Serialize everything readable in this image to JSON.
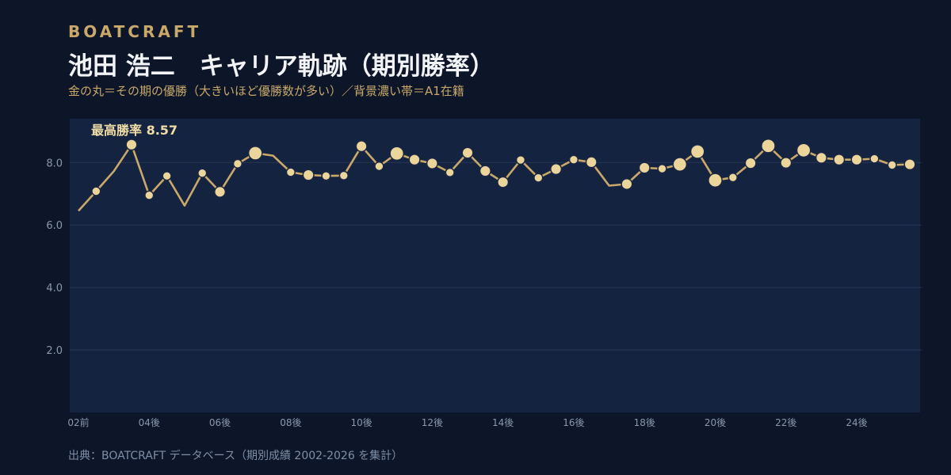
{
  "brand": "BOATCRAFT",
  "title": "池田 浩二　キャリア軌跡（期別勝率）",
  "subtitle": "金の丸＝その期の優勝（大きいほど優勝数が多い）／背景濃い帯＝A1在籍",
  "source": "出典：BOATCRAFT データベース（期別成績 2002-2026 を集計）",
  "colors": {
    "background": "#0c1628",
    "plot_band": "#14233f",
    "line": "#c9a86a",
    "marker": "#ecd59a",
    "grid": "#263756"
  },
  "chart_data": {
    "type": "line",
    "annotation": "最高勝率 8.57",
    "ylim": [
      0,
      9.4
    ],
    "yticks": [
      2.0,
      4.0,
      6.0,
      8.0
    ],
    "ytick_labels": [
      "2.0",
      "4.0",
      "6.0",
      "8.0"
    ],
    "xtick_labels": [
      {
        "index": 0,
        "label": "02前"
      },
      {
        "index": 4,
        "label": "04後"
      },
      {
        "index": 8,
        "label": "06後"
      },
      {
        "index": 12,
        "label": "08後"
      },
      {
        "index": 16,
        "label": "10後"
      },
      {
        "index": 20,
        "label": "12後"
      },
      {
        "index": 24,
        "label": "14後"
      },
      {
        "index": 28,
        "label": "16後"
      },
      {
        "index": 32,
        "label": "18後"
      },
      {
        "index": 36,
        "label": "20後"
      },
      {
        "index": 40,
        "label": "22後"
      },
      {
        "index": 44,
        "label": "24後"
      }
    ],
    "values": [
      6.45,
      7.08,
      7.72,
      8.57,
      6.95,
      7.57,
      6.62,
      7.66,
      7.06,
      7.96,
      8.3,
      8.22,
      7.69,
      7.6,
      7.57,
      7.58,
      8.52,
      7.88,
      8.29,
      8.09,
      7.97,
      7.68,
      8.31,
      7.73,
      7.37,
      8.08,
      7.51,
      7.79,
      8.09,
      8.01,
      7.26,
      7.31,
      7.83,
      7.8,
      7.94,
      8.35,
      7.43,
      7.52,
      7.98,
      8.53,
      7.99,
      8.39,
      8.15,
      8.09,
      8.09,
      8.12,
      7.92,
      7.94
    ],
    "wins": [
      0,
      1,
      0,
      2,
      1,
      1,
      0,
      1,
      2,
      1,
      3,
      0,
      1,
      2,
      1,
      1,
      2,
      1,
      3,
      2,
      2,
      1,
      2,
      2,
      2,
      1,
      1,
      2,
      1,
      2,
      0,
      2,
      2,
      1,
      3,
      3,
      3,
      1,
      2,
      3,
      2,
      3,
      2,
      2,
      2,
      1,
      1,
      2
    ]
  }
}
